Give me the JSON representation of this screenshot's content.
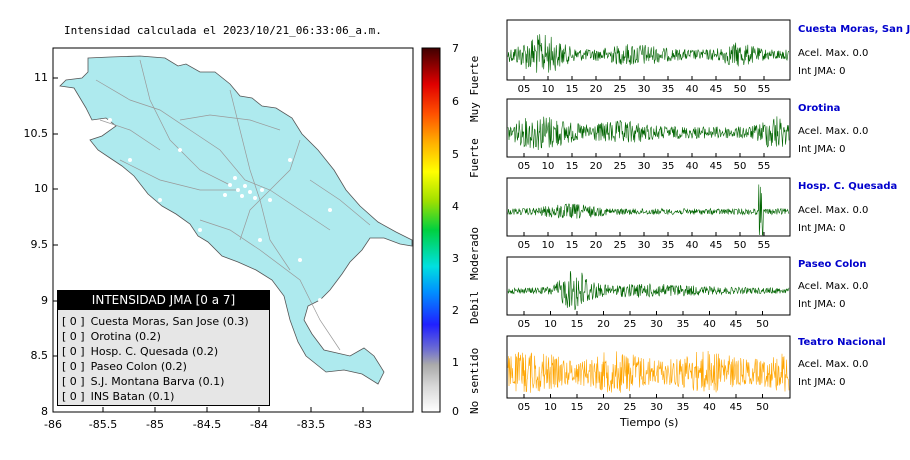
{
  "map": {
    "title": "Intensidad calculada el 2023/10/21_06:33:06_a.m.",
    "lat_ticks": [
      "11",
      "10.5",
      "10",
      "9.5",
      "9",
      "8.5",
      "8"
    ],
    "lon_ticks": [
      "-86",
      "-85.5",
      "-85",
      "-84.5",
      "-84",
      "-83.5",
      "-83"
    ]
  },
  "colorbar": {
    "ticks": [
      "7",
      "6",
      "5",
      "4",
      "3",
      "2",
      "1",
      "0"
    ],
    "labels": [
      "Muy Fuerte",
      "Fuerte",
      "Moderado",
      "Debil",
      "No sentido"
    ]
  },
  "legend": {
    "header": "INTENSIDAD JMA [0 a 7]",
    "items": [
      {
        "level": "[ 0 ]",
        "text": "Cuesta Moras, San Jose (0.3)"
      },
      {
        "level": "[ 0 ]",
        "text": "Orotina (0.2)"
      },
      {
        "level": "[ 0 ]",
        "text": "Hosp. C. Quesada (0.2)"
      },
      {
        "level": "[ 0 ]",
        "text": "Paseo Colon (0.2)"
      },
      {
        "level": "[ 0 ]",
        "text": "S.J. Montana Barva (0.1)"
      },
      {
        "level": "[ 0 ]",
        "text": "INS Batan (0.1)"
      }
    ]
  },
  "traces": [
    {
      "name": "Cuesta Moras, San Jose",
      "acel": "Acel. Max. 0.0",
      "int": "Int JMA: 0",
      "color": "#006400",
      "ticks": [
        "05",
        "10",
        "15",
        "20",
        "25",
        "30",
        "35",
        "40",
        "45",
        "50",
        "55"
      ]
    },
    {
      "name": "Orotina",
      "acel": "Acel. Max. 0.0",
      "int": "Int JMA: 0",
      "color": "#006400",
      "ticks": [
        "05",
        "10",
        "15",
        "20",
        "25",
        "30",
        "35",
        "40",
        "45",
        "50",
        "55"
      ]
    },
    {
      "name": "Hosp. C. Quesada",
      "acel": "Acel. Max. 0.0",
      "int": "Int JMA: 0",
      "color": "#006400",
      "ticks": [
        "05",
        "10",
        "15",
        "20",
        "25",
        "30",
        "35",
        "40",
        "45",
        "50",
        "55"
      ]
    },
    {
      "name": "Paseo Colon",
      "acel": "Acel. Max. 0.0",
      "int": "Int JMA: 0",
      "color": "#006400",
      "ticks": [
        "05",
        "10",
        "15",
        "20",
        "25",
        "30",
        "35",
        "40",
        "45",
        "50"
      ]
    },
    {
      "name": "Teatro Nacional",
      "acel": "Acel. Max. 0.0",
      "int": "Int JMA: 0",
      "color": "#ffa500",
      "ticks": [
        "05",
        "10",
        "15",
        "20",
        "25",
        "30",
        "35",
        "40",
        "45",
        "50"
      ]
    }
  ],
  "time_axis_label": "Tiempo (s)"
}
